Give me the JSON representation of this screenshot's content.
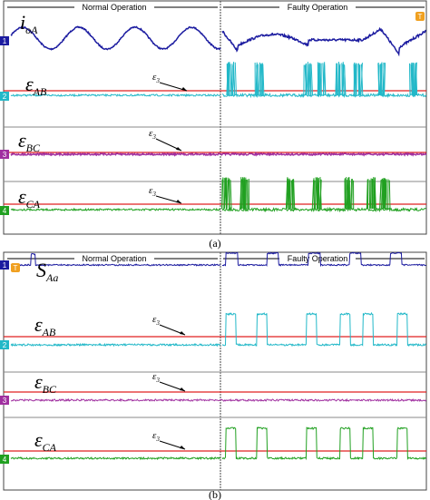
{
  "panel_a": {
    "header": {
      "left": "Normal Operation",
      "right": "Faulty Operation"
    },
    "channels": [
      "1",
      "2",
      "3",
      "4"
    ],
    "trigger": "T",
    "signals": [
      {
        "symbol": "i",
        "subscript": "oA"
      },
      {
        "symbol": "ε",
        "subscript": "AB"
      },
      {
        "symbol": "ε",
        "subscript": "BC"
      },
      {
        "symbol": "ε",
        "subscript": "CA"
      }
    ],
    "threshold": {
      "symbol": "ε",
      "subscript": "3"
    },
    "caption": "(a)"
  },
  "panel_b": {
    "header": {
      "left": "Normal Operation",
      "right": "Faulty Operation"
    },
    "channels": [
      "1",
      "2",
      "3",
      "4"
    ],
    "trigger": "T",
    "signals": [
      {
        "symbol": "S",
        "subscript": "Aa"
      },
      {
        "symbol": "ε",
        "subscript": "AB"
      },
      {
        "symbol": "ε",
        "subscript": "BC"
      },
      {
        "symbol": "ε",
        "subscript": "CA"
      }
    ],
    "threshold": {
      "symbol": "ε",
      "subscript": "3"
    },
    "caption": "(b)"
  }
}
